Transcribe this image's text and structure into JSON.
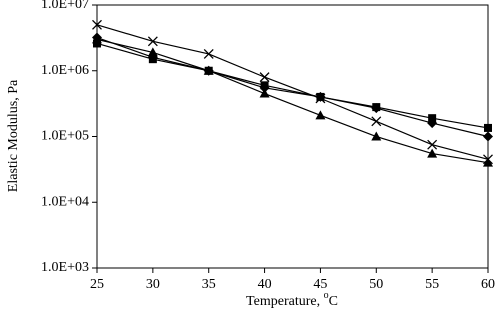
{
  "chart_data": {
    "type": "line",
    "y_label": "Elastic Modulus, Pa",
    "x_label": {
      "text": "Temperature, ",
      "superscript": "o",
      "unit": "C"
    },
    "x": [
      25,
      30,
      35,
      40,
      45,
      50,
      55,
      60
    ],
    "xlim": [
      25,
      60
    ],
    "xticks": [
      25,
      30,
      35,
      40,
      45,
      50,
      55,
      60
    ],
    "y_scale": "log",
    "ylim": [
      1000,
      10000000
    ],
    "yticks": [
      {
        "value": 1000,
        "label": "1.0E+03"
      },
      {
        "value": 10000,
        "label": "1.0E+04"
      },
      {
        "value": 100000,
        "label": "1.0E+05"
      },
      {
        "value": 1000000,
        "label": "1.0E+06"
      },
      {
        "value": 10000000,
        "label": "1.0E+07"
      }
    ],
    "series": [
      {
        "marker": "x",
        "color": "#000000",
        "values": [
          5000000,
          2800000,
          1800000,
          800000,
          380000,
          170000,
          75000,
          45000
        ]
      },
      {
        "marker": "square",
        "color": "#000000",
        "values": [
          2600000,
          1500000,
          1000000,
          600000,
          400000,
          280000,
          190000,
          135000
        ]
      },
      {
        "marker": "diamond",
        "color": "#000000",
        "values": [
          3200000,
          1600000,
          1000000,
          550000,
          400000,
          270000,
          160000,
          100000
        ]
      },
      {
        "marker": "triangle",
        "color": "#000000",
        "values": [
          3000000,
          1900000,
          1000000,
          450000,
          210000,
          100000,
          55000,
          40000
        ]
      }
    ]
  }
}
